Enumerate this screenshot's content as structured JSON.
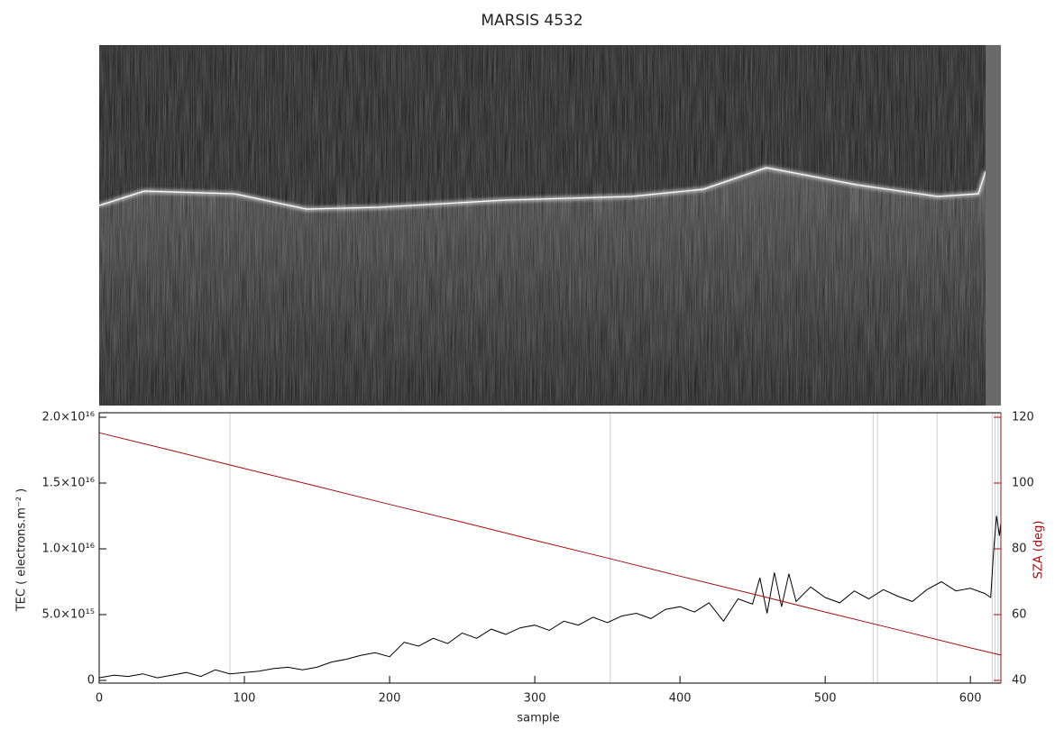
{
  "chart_data": {
    "type": "line",
    "title": "MARSIS 4532",
    "x_label": "sample",
    "y_label": "TEC ( electrons.m⁻² )",
    "y2_label": "SZA (deg)",
    "xlim": [
      0,
      621
    ],
    "xticks": [
      0,
      100,
      200,
      300,
      400,
      500,
      600
    ],
    "ylim": [
      0,
      2e+16
    ],
    "yticks": [
      0,
      {
        "value": 5000000000000000.0,
        "label": "5.0×10¹⁵"
      },
      {
        "value": 1e+16,
        "label": "1.0×10¹⁶"
      },
      {
        "value": 1.5e+16,
        "label": "1.5×10¹⁶"
      },
      {
        "value": 2e+16,
        "label": "2.0×10¹⁶"
      }
    ],
    "y2lim": [
      40,
      120
    ],
    "y2ticks": [
      40,
      60,
      80,
      100,
      120
    ],
    "vertical_lines": [
      90,
      352,
      533,
      536,
      577,
      615,
      617,
      619
    ],
    "series": [
      {
        "color": "#000000",
        "x": [
          0,
          10,
          20,
          30,
          40,
          50,
          60,
          70,
          80,
          90,
          100,
          110,
          120,
          130,
          140,
          150,
          160,
          170,
          180,
          190,
          200,
          210,
          220,
          230,
          240,
          250,
          260,
          270,
          280,
          290,
          300,
          310,
          320,
          330,
          340,
          350,
          360,
          370,
          380,
          390,
          400,
          410,
          420,
          430,
          440,
          450,
          455,
          460,
          465,
          470,
          475,
          480,
          490,
          500,
          510,
          520,
          530,
          540,
          550,
          560,
          570,
          580,
          590,
          600,
          610,
          614,
          616,
          618,
          620,
          621
        ],
        "values": [
          200000000000000.0,
          400000000000000.0,
          300000000000000.0,
          500000000000000.0,
          200000000000000.0,
          400000000000000.0,
          600000000000000.0,
          300000000000000.0,
          800000000000000.0,
          500000000000000.0,
          600000000000000.0,
          700000000000000.0,
          900000000000000.0,
          1000000000000000.0,
          800000000000000.0,
          1000000000000000.0,
          1400000000000000.0,
          1600000000000000.0,
          1900000000000000.0,
          2100000000000000.0,
          1800000000000000.0,
          2900000000000000.0,
          2600000000000000.0,
          3200000000000000.0,
          2800000000000000.0,
          3600000000000000.0,
          3200000000000000.0,
          3900000000000000.0,
          3500000000000000.0,
          4000000000000000.0,
          4200000000000000.0,
          3800000000000000.0,
          4500000000000000.0,
          4200000000000000.0,
          4800000000000000.0,
          4400000000000000.0,
          4900000000000000.0,
          5100000000000000.0,
          4700000000000000.0,
          5400000000000000.0,
          5600000000000000.0,
          5200000000000000.0,
          5900000000000000.0,
          4500000000000000.0,
          6200000000000000.0,
          5800000000000000.0,
          7800000000000000.0,
          5100000000000000.0,
          8200000000000000.0,
          5600000000000000.0,
          8100000000000000.0,
          6000000000000000.0,
          7100000000000000.0,
          6300000000000000.0,
          5900000000000000.0,
          6800000000000000.0,
          6200000000000000.0,
          6900000000000000.0,
          6400000000000000.0,
          6000000000000000.0,
          6900000000000000.0,
          7500000000000000.0,
          6800000000000000.0,
          7000000000000000.0,
          6600000000000000.0,
          6300000000000000.0,
          9800000000000000.0,
          1.25e+16,
          1.1e+16,
          1.2e+16
        ]
      },
      {
        "color": "#a01010",
        "axis": "y2",
        "x": [
          0,
          50,
          100,
          150,
          200,
          250,
          300,
          350,
          400,
          450,
          500,
          550,
          600,
          621
        ],
        "values": [
          115.3,
          109.9,
          104.4,
          99.0,
          93.5,
          88.1,
          82.6,
          77.2,
          71.7,
          66.3,
          60.8,
          55.4,
          49.9,
          47.7
        ]
      }
    ]
  }
}
